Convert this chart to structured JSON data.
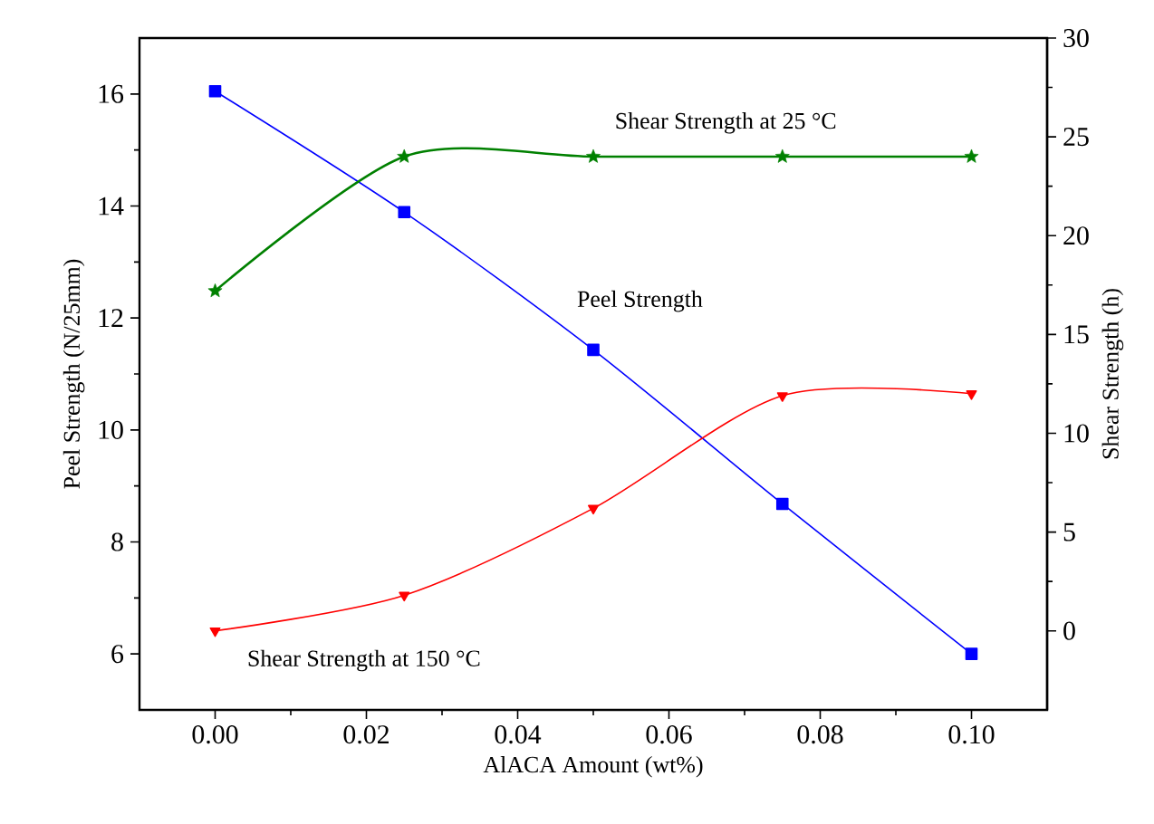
{
  "chart_data": {
    "type": "line",
    "xlabel": "AlACA Amount (wt%)",
    "ylabel": "Peel Strength (N/25mm)",
    "y2label": "Shear Strength (h)",
    "x": [
      0,
      0.025,
      0.05,
      0.075,
      0.1
    ],
    "series": [
      {
        "name": "Peel Strength",
        "color": "#0000ff",
        "marker": "square",
        "values": [
          16.05,
          13.89,
          11.43,
          8.68,
          6.0
        ]
      },
      {
        "name": "Shear Strength at 25 °C",
        "color": "#008000",
        "marker": "star",
        "axis": "y2",
        "values": [
          17.2,
          24.0,
          24.0,
          24.0,
          24.0
        ]
      },
      {
        "name": "Shear Strength at 150 °C",
        "color": "#ff0000",
        "marker": "triangle",
        "axis": "y2",
        "values": [
          0,
          1.8,
          6.2,
          11.9,
          12.0
        ]
      }
    ],
    "xlim": [
      -0.01,
      0.11
    ],
    "xticks": [
      {
        "value": 0,
        "label": "0.00"
      },
      {
        "value": 0.02,
        "label": "0.02"
      },
      {
        "value": 0.04,
        "label": "0.04"
      },
      {
        "value": 0.06,
        "label": "0.06"
      },
      {
        "value": 0.08,
        "label": "0.08"
      },
      {
        "value": 0.1,
        "label": "0.10"
      }
    ],
    "ylim": [
      5,
      17
    ],
    "yticks": [
      6,
      8,
      10,
      12,
      14,
      16
    ],
    "y2lim": [
      -4,
      30
    ],
    "y2ticks": [
      0,
      5,
      10,
      15,
      20,
      25,
      30
    ],
    "line_style": "solid"
  }
}
